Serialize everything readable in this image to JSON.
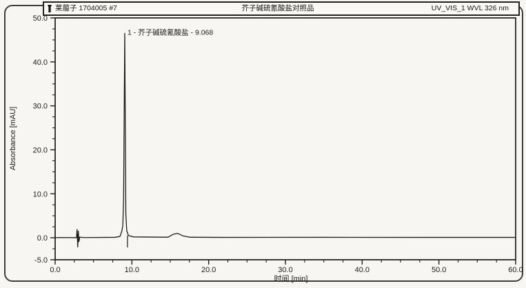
{
  "page": {
    "background": "#f7f6f2",
    "ink": "#1b1b1b"
  },
  "header": {
    "sample_icon": "vial-icon",
    "sample_name": "莱菔子 1704005 #7",
    "title": "芥子碱硫氰酸盐对照品",
    "channel": "UV_VIS_1 WVL 326 nm"
  },
  "chart_data": {
    "type": "line",
    "title": "芥子碱硫氰酸盐对照品",
    "xlabel": "时间 [min]",
    "ylabel": "Absorbance [mAU]",
    "xlim": [
      0,
      60
    ],
    "ylim": [
      -5,
      50
    ],
    "grid": false,
    "x_ticks": [
      {
        "v": 0,
        "label": "0.0"
      },
      {
        "v": 10,
        "label": "10.0"
      },
      {
        "v": 20,
        "label": "20.0"
      },
      {
        "v": 30,
        "label": "30.0"
      },
      {
        "v": 40,
        "label": "40.0"
      },
      {
        "v": 50,
        "label": "50.0"
      },
      {
        "v": 60,
        "label": "60.0"
      }
    ],
    "x_minor_step": 2.5,
    "y_ticks": [
      {
        "v": 50,
        "label": "50.0"
      },
      {
        "v": 40,
        "label": "40.0"
      },
      {
        "v": 30,
        "label": "30.0"
      },
      {
        "v": 20,
        "label": "20.0"
      },
      {
        "v": 10,
        "label": "10.0"
      },
      {
        "v": 0,
        "label": "0.0"
      },
      {
        "v": -5,
        "label": "-5.0"
      }
    ],
    "y_minor_step": 2.5,
    "series": [
      {
        "name": "UV_VIS_1 WVL 326 nm",
        "color": "#1b1b1b",
        "points": [
          [
            0,
            0
          ],
          [
            0.4,
            0.05
          ],
          [
            2.78,
            0.02
          ],
          [
            2.86,
            1.9
          ],
          [
            2.94,
            -2.1
          ],
          [
            3.02,
            1.5
          ],
          [
            3.1,
            -0.9
          ],
          [
            3.2,
            0.15
          ],
          [
            3.6,
            0.05
          ],
          [
            7.8,
            0.1
          ],
          [
            8.45,
            0.3
          ],
          [
            8.7,
            1.6
          ],
          [
            8.82,
            2.8
          ],
          [
            8.92,
            9
          ],
          [
            9.068,
            46.5
          ],
          [
            9.21,
            5.5
          ],
          [
            9.33,
            1.6
          ],
          [
            9.55,
            0.5
          ],
          [
            10.2,
            0.2
          ],
          [
            14.7,
            0.12
          ],
          [
            15.4,
            0.8
          ],
          [
            15.95,
            1.0
          ],
          [
            16.7,
            0.4
          ],
          [
            17.6,
            0.12
          ],
          [
            22,
            0.08
          ],
          [
            35,
            0.1
          ],
          [
            48,
            0.08
          ],
          [
            60,
            0.08
          ]
        ]
      }
    ],
    "peaks": [
      {
        "number": "1",
        "name": "芥子碱硫氰酸盐",
        "retention": "9.068",
        "label": "1 - 芥子碱硫氰酸盐 - 9.068",
        "apex_mau": 46.5,
        "marker_x": 9.42
      }
    ]
  }
}
